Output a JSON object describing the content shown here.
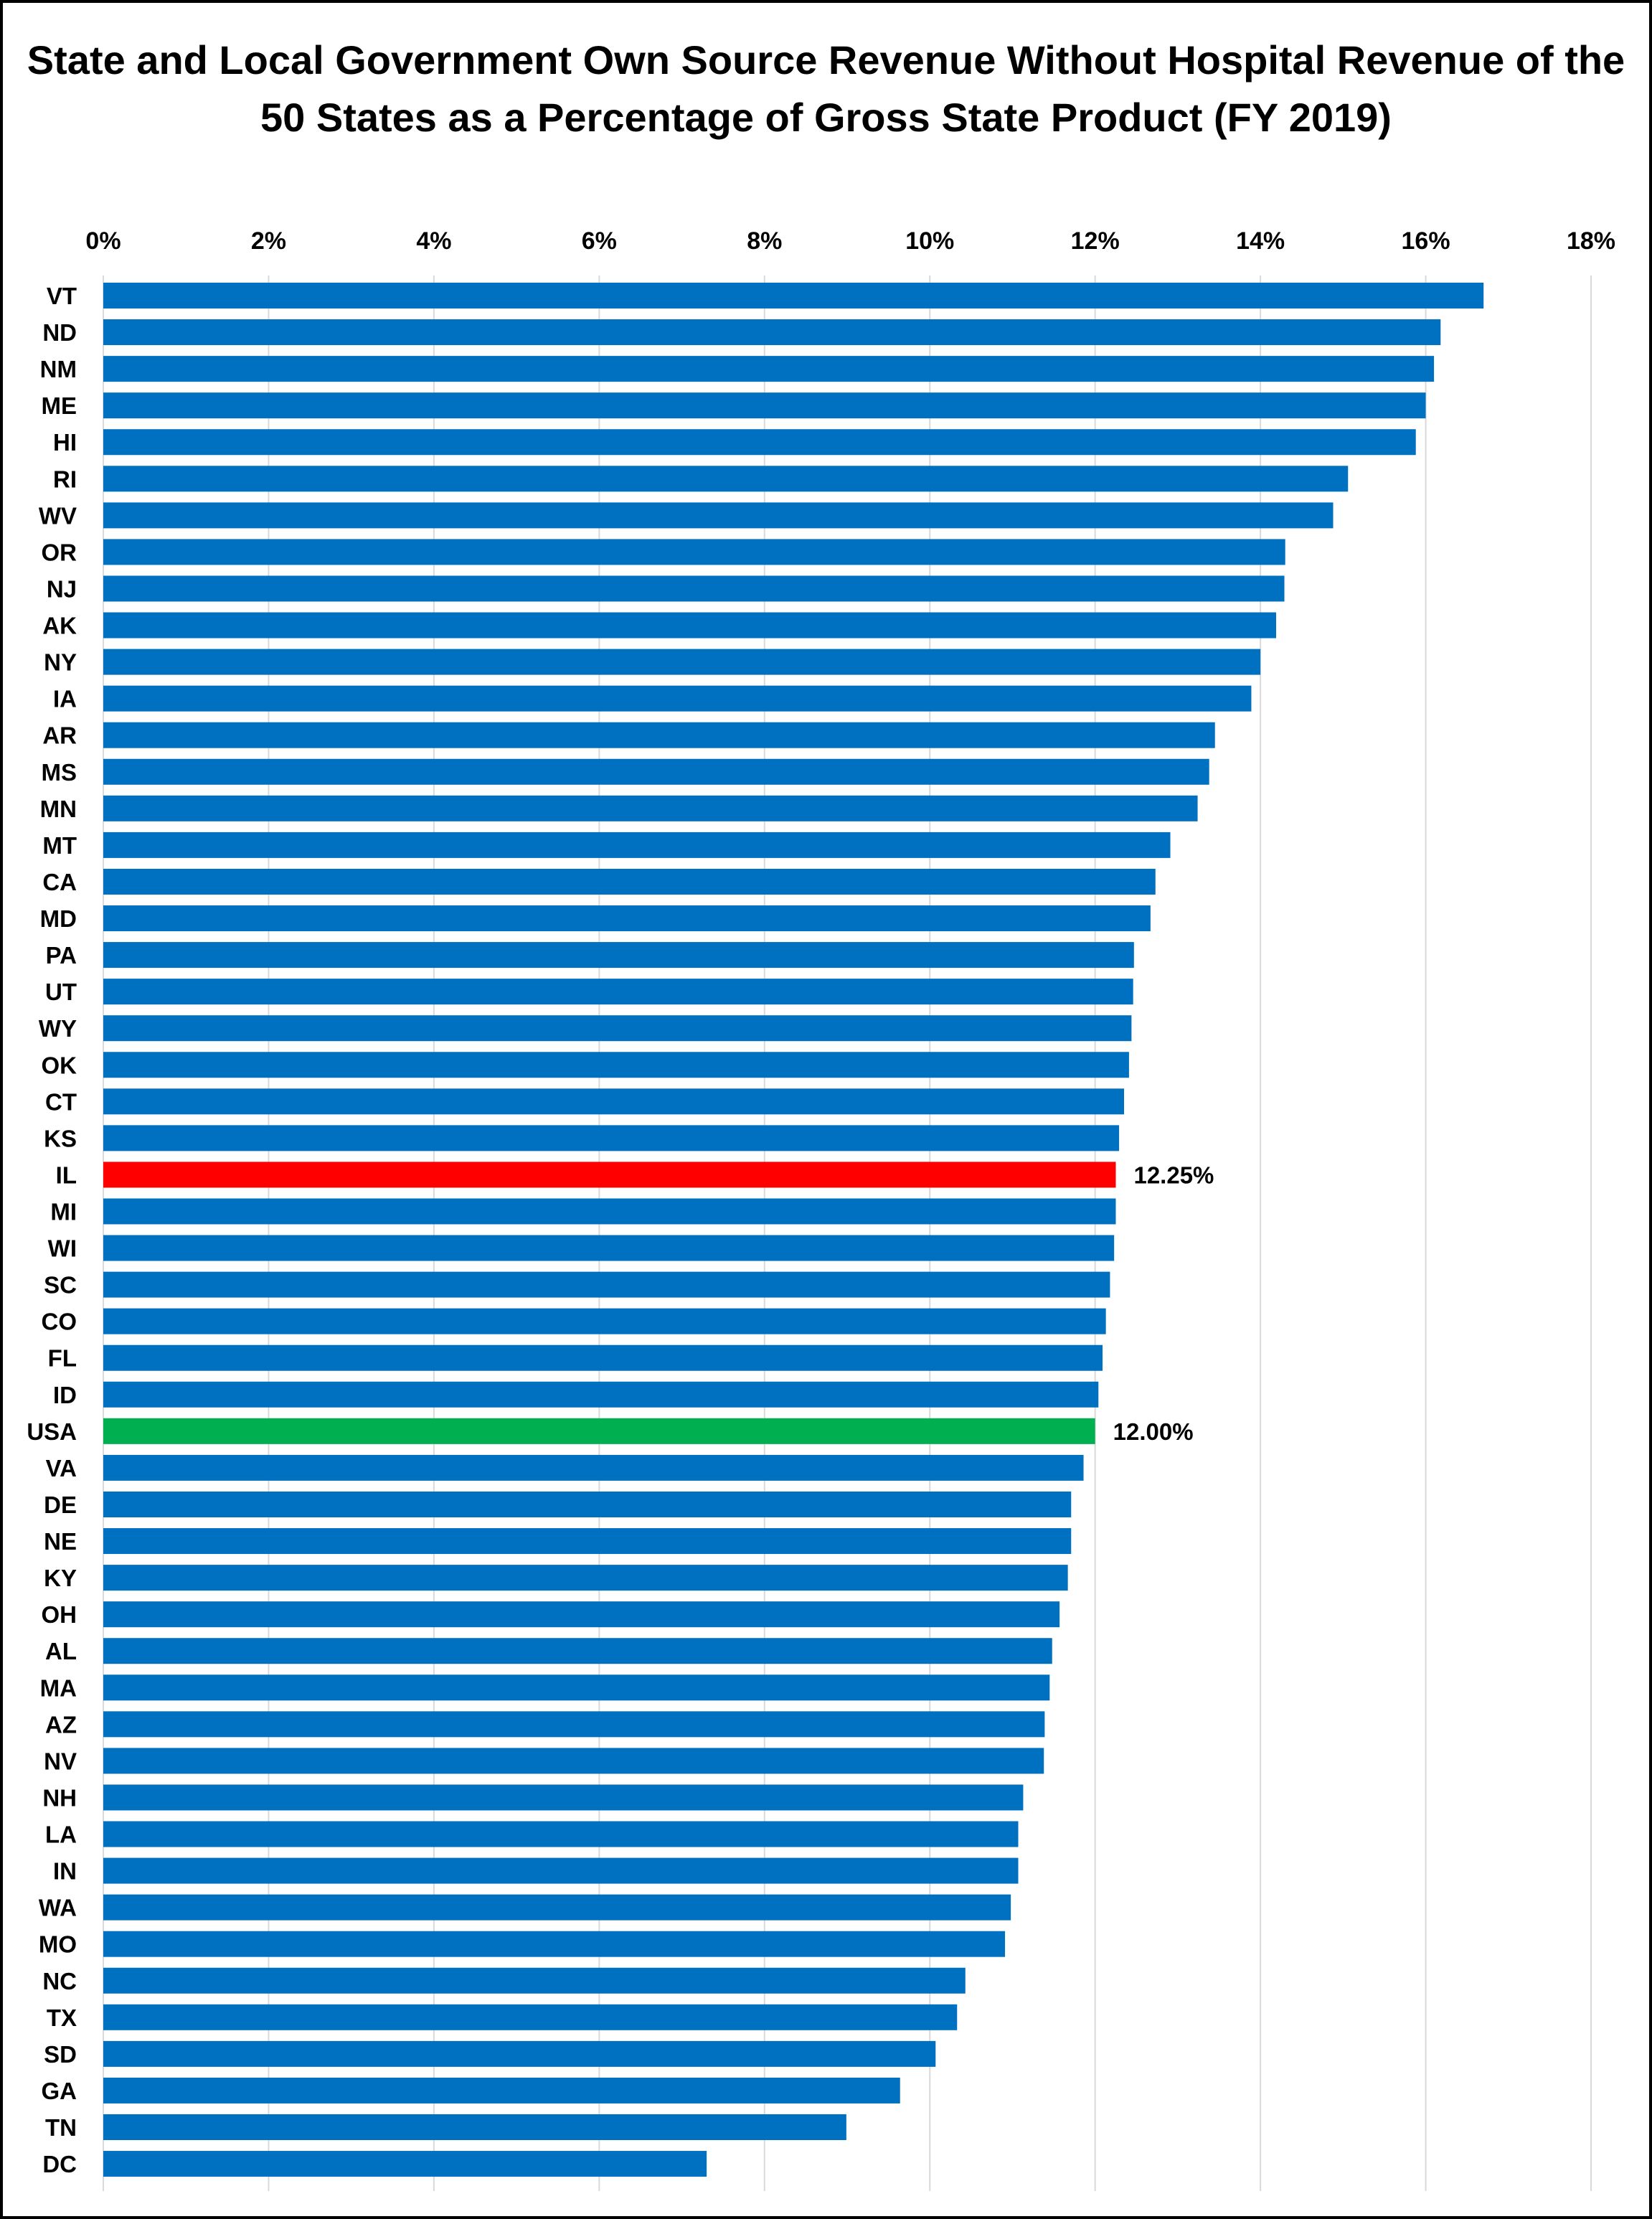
{
  "chart_data": {
    "type": "bar",
    "orientation": "horizontal",
    "title": "State and Local Government Own Source Revenue Without Hospital Revenue of the 50 States as a Percentage of Gross State Product (FY 2019)",
    "xlim": [
      0,
      18
    ],
    "x_ticks": [
      "0%",
      "2%",
      "4%",
      "6%",
      "8%",
      "10%",
      "12%",
      "14%",
      "16%",
      "18%"
    ],
    "x_axis_position": "top",
    "grid": "vertical",
    "legend": "none",
    "categories": [
      "VT",
      "ND",
      "NM",
      "ME",
      "HI",
      "RI",
      "WV",
      "OR",
      "NJ",
      "AK",
      "NY",
      "IA",
      "AR",
      "MS",
      "MN",
      "MT",
      "CA",
      "MD",
      "PA",
      "UT",
      "WY",
      "OK",
      "CT",
      "KS",
      "IL",
      "MI",
      "WI",
      "SC",
      "CO",
      "FL",
      "ID",
      "USA",
      "VA",
      "DE",
      "NE",
      "KY",
      "OH",
      "AL",
      "MA",
      "AZ",
      "NV",
      "NH",
      "LA",
      "IN",
      "WA",
      "MO",
      "NC",
      "TX",
      "SD",
      "GA",
      "TN",
      "DC"
    ],
    "values": [
      16.7,
      16.18,
      16.1,
      16.0,
      15.88,
      15.06,
      14.88,
      14.3,
      14.29,
      14.19,
      14.0,
      13.89,
      13.45,
      13.38,
      13.24,
      12.91,
      12.73,
      12.67,
      12.47,
      12.46,
      12.44,
      12.41,
      12.35,
      12.29,
      12.25,
      12.25,
      12.23,
      12.18,
      12.13,
      12.09,
      12.04,
      12.0,
      11.86,
      11.71,
      11.71,
      11.67,
      11.57,
      11.48,
      11.45,
      11.39,
      11.38,
      11.13,
      11.07,
      11.07,
      10.98,
      10.91,
      10.43,
      10.33,
      10.07,
      9.64,
      8.99,
      7.3
    ],
    "highlights": [
      {
        "category": "IL",
        "color": "#ff0000",
        "label": "12.25%"
      },
      {
        "category": "USA",
        "color": "#00b050",
        "label": "12.00%"
      }
    ],
    "colors": {
      "default_bar": "#0070c0",
      "gridline": "#d9d9d9",
      "text": "#000000"
    }
  }
}
